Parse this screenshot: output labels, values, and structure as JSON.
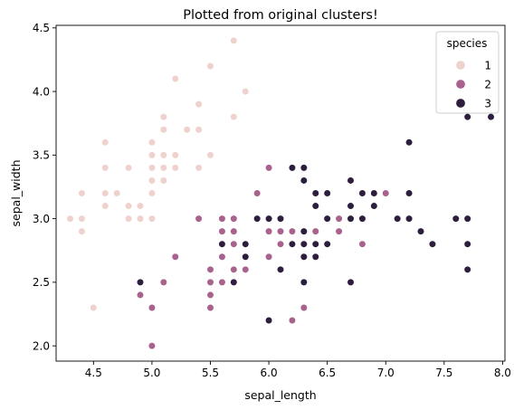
{
  "chart_data": {
    "type": "scatter",
    "title": "Plotted from original clusters!",
    "xlabel": "sepal_length",
    "ylabel": "sepal_width",
    "xlim": [
      4.18,
      8.02
    ],
    "ylim": [
      1.88,
      4.52
    ],
    "xticks": [
      4.5,
      5.0,
      5.5,
      6.0,
      6.5,
      7.0,
      7.5,
      8.0
    ],
    "xtick_labels": [
      "4.5",
      "5.0",
      "5.5",
      "6.0",
      "6.5",
      "7.0",
      "7.5",
      "8.0"
    ],
    "yticks": [
      2.0,
      2.5,
      3.0,
      3.5,
      4.0,
      4.5
    ],
    "ytick_labels": [
      "2.0",
      "2.5",
      "3.0",
      "3.5",
      "4.0",
      "4.5"
    ],
    "grid": false,
    "legend": {
      "title": "species",
      "placement": "top-right",
      "entries": [
        "1",
        "2",
        "3"
      ]
    },
    "series": [
      {
        "name": "1",
        "color": "#efd2cd",
        "points": [
          [
            4.3,
            3.0
          ],
          [
            4.4,
            3.2
          ],
          [
            4.4,
            3.0
          ],
          [
            4.4,
            2.9
          ],
          [
            4.5,
            2.3
          ],
          [
            4.6,
            3.6
          ],
          [
            4.6,
            3.4
          ],
          [
            4.6,
            3.2
          ],
          [
            4.6,
            3.1
          ],
          [
            4.7,
            3.2
          ],
          [
            4.8,
            3.4
          ],
          [
            4.8,
            3.1
          ],
          [
            4.8,
            3.0
          ],
          [
            4.9,
            3.1
          ],
          [
            4.9,
            3.0
          ],
          [
            5.0,
            3.6
          ],
          [
            5.0,
            3.5
          ],
          [
            5.0,
            3.4
          ],
          [
            5.0,
            3.3
          ],
          [
            5.0,
            3.2
          ],
          [
            5.0,
            3.0
          ],
          [
            5.1,
            3.8
          ],
          [
            5.1,
            3.7
          ],
          [
            5.1,
            3.5
          ],
          [
            5.1,
            3.4
          ],
          [
            5.1,
            3.3
          ],
          [
            5.2,
            4.1
          ],
          [
            5.2,
            3.5
          ],
          [
            5.2,
            3.4
          ],
          [
            5.3,
            3.7
          ],
          [
            5.4,
            3.9
          ],
          [
            5.4,
            3.7
          ],
          [
            5.4,
            3.4
          ],
          [
            5.5,
            4.2
          ],
          [
            5.5,
            3.5
          ],
          [
            5.7,
            4.4
          ],
          [
            5.7,
            3.8
          ],
          [
            5.8,
            4.0
          ]
        ]
      },
      {
        "name": "2",
        "color": "#a9628d",
        "points": [
          [
            4.9,
            2.4
          ],
          [
            5.0,
            2.3
          ],
          [
            5.0,
            2.0
          ],
          [
            5.1,
            2.5
          ],
          [
            5.2,
            2.7
          ],
          [
            5.4,
            3.0
          ],
          [
            5.5,
            2.6
          ],
          [
            5.5,
            2.5
          ],
          [
            5.5,
            2.4
          ],
          [
            5.5,
            2.3
          ],
          [
            5.6,
            3.0
          ],
          [
            5.6,
            2.9
          ],
          [
            5.6,
            2.7
          ],
          [
            5.6,
            2.5
          ],
          [
            5.7,
            3.0
          ],
          [
            5.7,
            2.9
          ],
          [
            5.7,
            2.8
          ],
          [
            5.7,
            2.6
          ],
          [
            5.8,
            2.7
          ],
          [
            5.8,
            2.6
          ],
          [
            5.9,
            3.2
          ],
          [
            5.9,
            3.0
          ],
          [
            6.0,
            3.4
          ],
          [
            6.0,
            2.9
          ],
          [
            6.0,
            2.7
          ],
          [
            6.1,
            3.0
          ],
          [
            6.1,
            2.9
          ],
          [
            6.1,
            2.8
          ],
          [
            6.2,
            2.9
          ],
          [
            6.2,
            2.2
          ],
          [
            6.3,
            2.3
          ],
          [
            6.4,
            3.2
          ],
          [
            6.4,
            2.9
          ],
          [
            6.5,
            2.8
          ],
          [
            6.6,
            3.0
          ],
          [
            6.6,
            2.9
          ],
          [
            6.7,
            3.1
          ],
          [
            6.7,
            3.0
          ],
          [
            6.8,
            2.8
          ],
          [
            7.0,
            3.2
          ]
        ]
      },
      {
        "name": "3",
        "color": "#2d1e3e",
        "points": [
          [
            4.9,
            2.5
          ],
          [
            5.6,
            2.8
          ],
          [
            5.7,
            2.5
          ],
          [
            5.8,
            2.8
          ],
          [
            5.8,
            2.7
          ],
          [
            5.9,
            3.0
          ],
          [
            6.0,
            3.0
          ],
          [
            6.0,
            2.2
          ],
          [
            6.1,
            3.0
          ],
          [
            6.1,
            2.6
          ],
          [
            6.2,
            3.4
          ],
          [
            6.2,
            2.8
          ],
          [
            6.3,
            3.4
          ],
          [
            6.3,
            3.3
          ],
          [
            6.3,
            2.9
          ],
          [
            6.3,
            2.8
          ],
          [
            6.3,
            2.7
          ],
          [
            6.3,
            2.5
          ],
          [
            6.4,
            3.2
          ],
          [
            6.4,
            3.1
          ],
          [
            6.4,
            2.8
          ],
          [
            6.4,
            2.7
          ],
          [
            6.5,
            3.2
          ],
          [
            6.5,
            3.0
          ],
          [
            6.5,
            2.8
          ],
          [
            6.7,
            3.3
          ],
          [
            6.7,
            3.1
          ],
          [
            6.7,
            3.0
          ],
          [
            6.7,
            2.5
          ],
          [
            6.8,
            3.2
          ],
          [
            6.8,
            3.0
          ],
          [
            6.9,
            3.2
          ],
          [
            6.9,
            3.1
          ],
          [
            7.1,
            3.0
          ],
          [
            7.2,
            3.6
          ],
          [
            7.2,
            3.2
          ],
          [
            7.2,
            3.0
          ],
          [
            7.3,
            2.9
          ],
          [
            7.4,
            2.8
          ],
          [
            7.6,
            3.0
          ],
          [
            7.7,
            3.8
          ],
          [
            7.7,
            3.0
          ],
          [
            7.7,
            2.8
          ],
          [
            7.7,
            2.6
          ],
          [
            7.9,
            3.8
          ]
        ]
      }
    ]
  }
}
